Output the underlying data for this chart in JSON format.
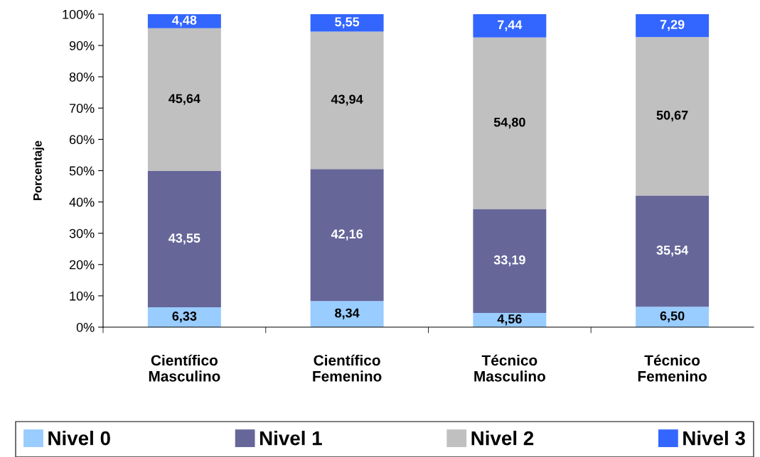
{
  "chart_data": {
    "type": "bar",
    "stacked": true,
    "ylabel": "Porcentaje",
    "categories": [
      "Científico\nMasculino",
      "Científico\nFemenino",
      "Técnico\nMasculino",
      "Técnico\nFemenino"
    ],
    "series": [
      {
        "name": "Nivel 0",
        "color": "#99ccff",
        "values": [
          6.33,
          8.34,
          4.56,
          6.5
        ],
        "value_labels": [
          "6,33",
          "8,34",
          "4,56",
          "6,50"
        ]
      },
      {
        "name": "Nivel 1",
        "color": "#666699",
        "values": [
          43.55,
          42.16,
          33.19,
          35.54
        ],
        "value_labels": [
          "43,55",
          "42,16",
          "33,19",
          "35,54"
        ]
      },
      {
        "name": "Nivel 2",
        "color": "#c0c0c0",
        "values": [
          45.64,
          43.94,
          54.8,
          50.67
        ],
        "value_labels": [
          "45,64",
          "43,94",
          "54,80",
          "50,67"
        ]
      },
      {
        "name": "Nivel 3",
        "color": "#3366ff",
        "values": [
          4.48,
          5.55,
          7.44,
          7.29
        ],
        "value_labels": [
          "4,48",
          "5,55",
          "7,44",
          "7,29"
        ]
      }
    ],
    "ylim": [
      0,
      100
    ],
    "yticks": [
      {
        "value": 0,
        "label": "0%"
      },
      {
        "value": 10,
        "label": "10%"
      },
      {
        "value": 20,
        "label": "20%"
      },
      {
        "value": 30,
        "label": "30%"
      },
      {
        "value": 40,
        "label": "40%"
      },
      {
        "value": 50,
        "label": "50%"
      },
      {
        "value": 60,
        "label": "60%"
      },
      {
        "value": 70,
        "label": "70%"
      },
      {
        "value": 80,
        "label": "80%"
      },
      {
        "value": 90,
        "label": "90%"
      },
      {
        "value": 100,
        "label": "100%"
      }
    ],
    "grid": false,
    "legend": "bottom"
  }
}
